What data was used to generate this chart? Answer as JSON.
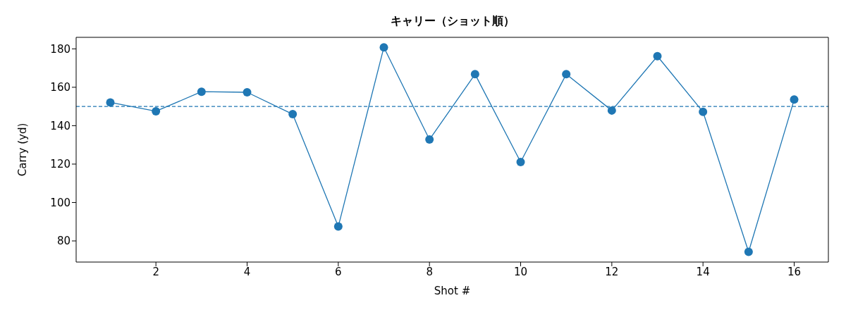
{
  "chart_data": {
    "type": "line",
    "title": "キャリー（ショット順）",
    "xlabel": "Shot #",
    "ylabel": "Carry (yd)",
    "x": [
      1,
      2,
      3,
      4,
      5,
      6,
      7,
      8,
      9,
      10,
      11,
      12,
      13,
      14,
      15,
      16
    ],
    "series": [
      {
        "color": "#1f77b4",
        "values": [
          152.1,
          147.5,
          157.7,
          157.4,
          146.0,
          87.5,
          180.8,
          132.8,
          166.8,
          121.1,
          166.8,
          147.9,
          176.2,
          147.2,
          74.3,
          153.6
        ]
      }
    ],
    "xlim": [
      0.25,
      16.75
    ],
    "xticks": [
      2,
      4,
      6,
      8,
      10,
      12,
      14,
      16
    ],
    "ylim": [
      69,
      186
    ],
    "yticks": [
      80,
      100,
      120,
      140,
      160,
      180
    ],
    "ref_lines": [
      {
        "axis": "y",
        "value": 150,
        "color": "#1f77b4",
        "line_style": "dashed"
      }
    ],
    "marker": "circle",
    "line_style": "solid",
    "grid": false,
    "legend": false
  }
}
